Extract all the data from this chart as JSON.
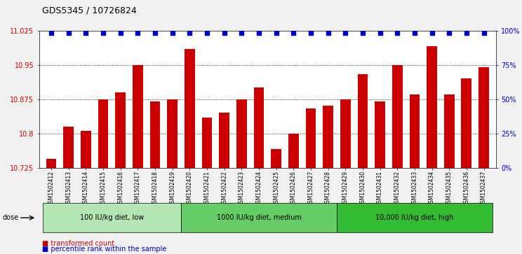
{
  "title": "GDS5345 / 10726824",
  "categories": [
    "GSM1502412",
    "GSM1502413",
    "GSM1502414",
    "GSM1502415",
    "GSM1502416",
    "GSM1502417",
    "GSM1502418",
    "GSM1502419",
    "GSM1502420",
    "GSM1502421",
    "GSM1502422",
    "GSM1502423",
    "GSM1502424",
    "GSM1502425",
    "GSM1502426",
    "GSM1502427",
    "GSM1502428",
    "GSM1502429",
    "GSM1502430",
    "GSM1502431",
    "GSM1502432",
    "GSM1502433",
    "GSM1502434",
    "GSM1502435",
    "GSM1502436",
    "GSM1502437"
  ],
  "bar_values": [
    10.745,
    10.815,
    10.805,
    10.875,
    10.89,
    10.95,
    10.87,
    10.875,
    10.985,
    10.835,
    10.845,
    10.875,
    10.9,
    10.765,
    10.8,
    10.855,
    10.86,
    10.875,
    10.93,
    10.87,
    10.95,
    10.885,
    10.99,
    10.885,
    10.92,
    10.945
  ],
  "bar_color": "#cc0000",
  "percentile_color": "#0000cc",
  "ylim_left": [
    10.725,
    11.025
  ],
  "yticks_left": [
    10.725,
    10.8,
    10.875,
    10.95,
    11.025
  ],
  "yticks_right": [
    0,
    25,
    50,
    75,
    100
  ],
  "ylim_right": [
    0,
    100
  ],
  "groups": [
    {
      "label": "100 IU/kg diet, low",
      "start": 0,
      "end": 8,
      "color": "#b3e6b3"
    },
    {
      "label": "1000 IU/kg diet, medium",
      "start": 8,
      "end": 17,
      "color": "#66cc66"
    },
    {
      "label": "10,000 IU/kg diet, high",
      "start": 17,
      "end": 26,
      "color": "#33bb33"
    }
  ],
  "dose_label": "dose",
  "legend_items": [
    {
      "label": "transformed count",
      "color": "#cc0000"
    },
    {
      "label": "percentile rank within the sample",
      "color": "#0000cc"
    }
  ],
  "fig_bg_color": "#f0f0f0",
  "plot_bg_color": "#ffffff",
  "xtick_bg_color": "#d8d8d8",
  "title_fontsize": 9,
  "tick_fontsize": 7,
  "xtick_fontsize": 5.5
}
